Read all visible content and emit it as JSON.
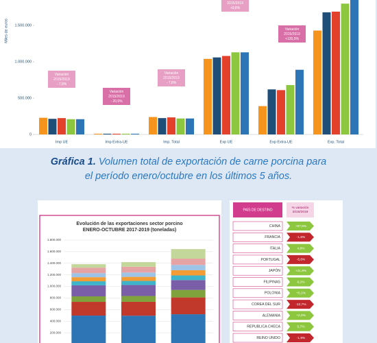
{
  "chart_data": [
    {
      "type": "bar",
      "y_label": "Miles de euros",
      "categories": [
        "Imp UE",
        "Imp Extra-UE",
        "Imp. Total",
        "Exp UE",
        "Exp Extra-UE",
        "Exp. Total"
      ],
      "series": [
        {
          "color": "#f7941d",
          "values": [
            230000,
            10000,
            240000,
            1040000,
            390000,
            1430000
          ]
        },
        {
          "color": "#1f4e79",
          "values": [
            215000,
            10000,
            225000,
            1060000,
            620000,
            1680000
          ]
        },
        {
          "color": "#e2412b",
          "values": [
            225000,
            10000,
            235000,
            1080000,
            610000,
            1690000
          ]
        },
        {
          "color": "#8dc63f",
          "values": [
            210000,
            10000,
            220000,
            1130000,
            680000,
            1800000
          ]
        },
        {
          "color": "#2e75b6",
          "values": [
            210000,
            10000,
            220000,
            1130000,
            890000,
            1850000
          ]
        }
      ],
      "ylim": [
        0,
        1850000
      ],
      "yticks": [
        0,
        {
          "value": 500000,
          "label": "500.000"
        },
        {
          "value": 1000000,
          "label": "1.000.000"
        },
        {
          "value": 1500000,
          "label": "1.500.000"
        }
      ],
      "annotations": [
        {
          "lines": [
            "Variación",
            "2015/2019",
            "- 7,8%"
          ]
        },
        {
          "lines": [
            "Variación",
            "2015/2019",
            "- 20,5%"
          ]
        },
        {
          "lines": [
            "Variación",
            "2015/2019",
            "- 7,8%"
          ]
        },
        {
          "lines": [
            "2015/2019",
            "+9,8%"
          ]
        },
        {
          "lines": [
            "Variación",
            "2015/2019",
            "+120,5%"
          ]
        }
      ]
    },
    {
      "type": "stacked_bar",
      "title": [
        "Evolución de las exportaciones sector porcino",
        "ENERO-OCTUBRE 2017-2019 (toneladas)"
      ],
      "categories": [
        null,
        null,
        null
      ],
      "series": [
        {
          "color": "#2e75b6",
          "values": [
            497000,
            495000,
            520000
          ]
        },
        {
          "color": "#c0392b",
          "values": [
            237000,
            240000,
            290000
          ]
        },
        {
          "color": "#7fa23c",
          "values": [
            95000,
            100000,
            130000
          ]
        },
        {
          "color": "#7a5ea8",
          "values": [
            190000,
            190000,
            170000
          ]
        },
        {
          "color": "#3eb3c9",
          "values": [
            70000,
            70000,
            80000
          ]
        },
        {
          "color": "#f39c35",
          "values": [
            70000,
            70000,
            90000
          ]
        },
        {
          "color": "#9dc3e6",
          "values": [
            70000,
            75000,
            90000
          ]
        },
        {
          "color": "#e6a3a3",
          "values": [
            95000,
            100000,
            110000
          ]
        },
        {
          "color": "#c4d79b",
          "values": [
            60000,
            80000,
            165000
          ]
        }
      ],
      "ylim": [
        0,
        1800000
      ],
      "yticks": [
        {
          "value": 200000,
          "label": "200.000"
        },
        {
          "value": 400000,
          "label": "400.000"
        },
        {
          "value": 600000,
          "label": "600.000"
        },
        {
          "value": 800000,
          "label": "800.000"
        },
        {
          "value": 1000000,
          "label": "1.000.000"
        },
        {
          "value": 1200000,
          "label": "1.200.000"
        },
        {
          "value": 1400000,
          "label": "1.400.000"
        },
        {
          "value": 1600000,
          "label": "1.600.000"
        },
        {
          "value": 1800000,
          "label": "1.800.000"
        }
      ],
      "grid": true
    }
  ],
  "caption": {
    "label": "Gráfica 1.",
    "lines": [
      "Volumen total de exportación de carne porcina para",
      "el período enero/octubre en los últimos 5 años."
    ]
  },
  "table": {
    "header": [
      "PAÍS DE DESTINO",
      "% variación 2018/2019"
    ],
    "rows": [
      [
        "CHINA",
        "+87,6%"
      ],
      [
        "FRANCIA",
        "-1,6%"
      ],
      [
        "ITALIA",
        "4,8%"
      ],
      [
        "PORTUGAL",
        "-5,6%"
      ],
      [
        "JAPÓN",
        "+21,9%"
      ],
      [
        "FILIPINAS",
        "8,2%"
      ],
      [
        "POLONIA",
        "+5,1%"
      ],
      [
        "COREA DEL SUR",
        "-12,7%"
      ],
      [
        "ALEMANIA",
        "+2,0%"
      ],
      [
        "REPUBLICA CHECA",
        "5,7%"
      ],
      [
        "REINO UNIDO",
        "-1,9%"
      ]
    ]
  }
}
